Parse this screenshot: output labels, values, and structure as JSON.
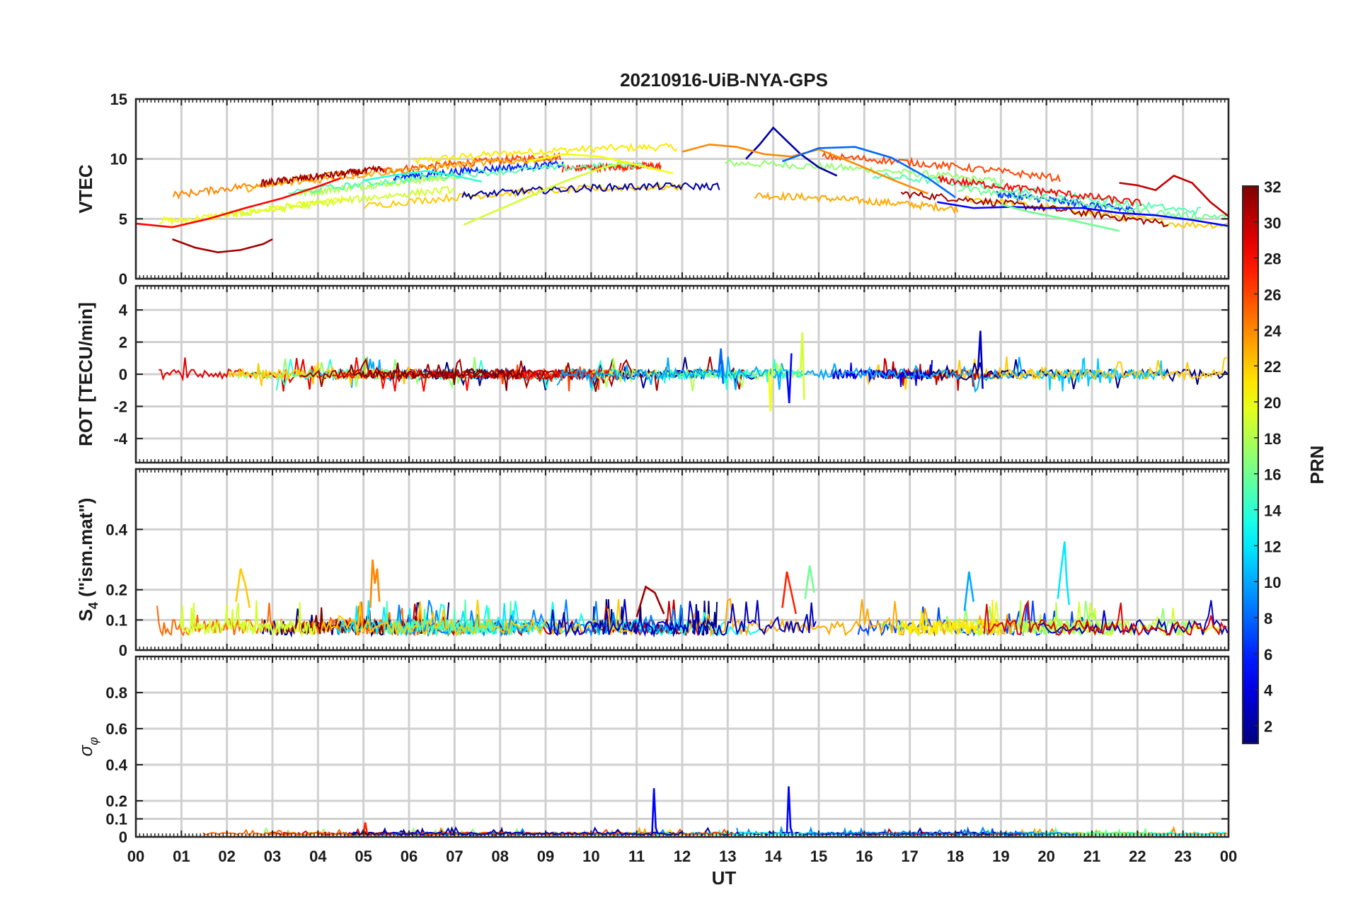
{
  "chart_data": {
    "type": "line",
    "title": "20210916-UiB-NYA-GPS",
    "xlabel": "UT",
    "x_ticks": [
      "00",
      "01",
      "02",
      "03",
      "04",
      "05",
      "06",
      "07",
      "08",
      "09",
      "10",
      "11",
      "12",
      "13",
      "14",
      "15",
      "16",
      "17",
      "18",
      "19",
      "20",
      "21",
      "22",
      "23",
      "00"
    ],
    "xlim": [
      0,
      24
    ],
    "grid": true,
    "colorbar": {
      "label": "PRN",
      "colormap": "jet",
      "clim": [
        1,
        32
      ],
      "ticks": [
        "2",
        "4",
        "6",
        "8",
        "10",
        "12",
        "14",
        "16",
        "18",
        "20",
        "22",
        "24",
        "26",
        "28",
        "30",
        "32"
      ],
      "tick_values": [
        2,
        4,
        6,
        8,
        10,
        12,
        14,
        16,
        18,
        20,
        22,
        24,
        26,
        28,
        30,
        32
      ]
    },
    "panels": [
      {
        "ylabel": "VTEC",
        "ylim": [
          0,
          15
        ],
        "y_ticks": [
          "0",
          "5",
          "10",
          "15"
        ],
        "y_tick_values": [
          0,
          5,
          10,
          15
        ],
        "series_summary": "per-PRN VTEC arcs, ~2-13 TECU, diurnal maximum near 14 UT",
        "series": [
          {
            "prn": 2,
            "x": [
              13.4,
              13.7,
              14.0,
              14.3,
              14.6,
              15.0,
              15.4
            ],
            "y": [
              10.0,
              11.2,
              12.6,
              11.5,
              10.4,
              9.3,
              8.6
            ]
          },
          {
            "prn": 31,
            "x": [
              0.8,
              1.3,
              1.8,
              2.3,
              2.8,
              3.0
            ],
            "y": [
              3.3,
              2.6,
              2.2,
              2.4,
              2.9,
              3.3
            ]
          },
          {
            "prn": 28,
            "x": [
              0.0,
              0.8,
              1.6,
              2.4,
              3.2,
              4.0,
              4.5
            ],
            "y": [
              4.6,
              4.3,
              5.0,
              5.9,
              6.7,
              7.7,
              8.4
            ]
          },
          {
            "prn": 24,
            "x": [
              12.0,
              12.6,
              13.2,
              13.8,
              14.4,
              15.0,
              15.8,
              16.6,
              17.4
            ],
            "y": [
              10.6,
              11.2,
              11.0,
              10.4,
              10.2,
              10.8,
              9.6,
              8.3,
              7.1
            ]
          },
          {
            "prn": 8,
            "x": [
              14.2,
              15.0,
              15.8,
              16.6,
              17.4,
              18.0
            ],
            "y": [
              9.8,
              10.9,
              11.0,
              10.1,
              8.4,
              6.8
            ]
          },
          {
            "prn": 19,
            "x": [
              7.2,
              7.8,
              8.6,
              9.4,
              10.2,
              10.8
            ],
            "y": [
              4.5,
              5.5,
              6.8,
              8.1,
              9.2,
              9.8
            ]
          },
          {
            "prn": 14,
            "x": [
              5.0,
              5.6,
              6.4,
              7.0,
              7.6
            ],
            "y": [
              8.2,
              8.6,
              9.0,
              8.6,
              8.1
            ]
          },
          {
            "prn": 30,
            "x": [
              21.6,
              22.0,
              22.4,
              22.8,
              23.2,
              23.6,
              24.0
            ],
            "y": [
              8.0,
              7.8,
              7.4,
              8.6,
              8.0,
              6.4,
              5.2
            ]
          },
          {
            "prn": 20,
            "x": [
              8.6,
              9.4,
              10.2,
              11.0,
              11.8
            ],
            "y": [
              9.8,
              10.4,
              10.2,
              9.5,
              8.8
            ]
          },
          {
            "prn": 5,
            "x": [
              17.6,
              18.4,
              19.2,
              20.0,
              20.8,
              21.6,
              22.4,
              23.2,
              24.0
            ],
            "y": [
              6.4,
              5.9,
              6.0,
              5.9,
              5.9,
              5.5,
              5.3,
              4.9,
              4.4
            ]
          },
          {
            "prn": 16,
            "x": [
              19.0,
              19.6,
              20.4,
              21.0,
              21.6
            ],
            "y": [
              6.2,
              5.6,
              5.0,
              4.5,
              4.0
            ]
          }
        ]
      },
      {
        "ylabel": "ROT [TECU/min]",
        "ylim": [
          -5.5,
          5.5
        ],
        "y_ticks": [
          "-4",
          "-2",
          "0",
          "2",
          "4"
        ],
        "y_tick_values": [
          -4,
          -2,
          0,
          2,
          4
        ],
        "series_summary": "rate of TEC per PRN, mostly within ±1 TECU/min, spikes to about ±2.6",
        "series": [
          {
            "prn": 19,
            "x": [
              14.6,
              14.64,
              14.68
            ],
            "y": [
              0.3,
              2.6,
              -1.6
            ]
          },
          {
            "prn": 20,
            "x": [
              13.9,
              13.94,
              13.98
            ],
            "y": [
              0.2,
              -2.3,
              0.4
            ]
          },
          {
            "prn": 3,
            "x": [
              18.5,
              18.55,
              18.6
            ],
            "y": [
              0.4,
              2.7,
              -0.9
            ]
          },
          {
            "prn": 5,
            "x": [
              14.3,
              14.35,
              14.4
            ],
            "y": [
              0.2,
              -1.8,
              1.3
            ]
          },
          {
            "prn": 8,
            "x": [
              12.8,
              12.85,
              12.9
            ],
            "y": [
              0.1,
              1.6,
              -0.6
            ]
          }
        ]
      },
      {
        "ylabel": "S_4 (\"ism.mat\")",
        "ylabel_main": "S",
        "ylabel_sub": "4",
        "ylabel_rest": " (\"ism.mat\")",
        "ylim": [
          0,
          0.6
        ],
        "y_ticks": [
          "0",
          "0.1",
          "0.2",
          "0.4"
        ],
        "y_tick_values": [
          0,
          0.1,
          0.2,
          0.4
        ],
        "series_summary": "S4 per PRN, baseline 0.04-0.1 with peaks up to ~0.36",
        "series": [
          {
            "prn": 12,
            "x": [
              20.25,
              20.3,
              20.35,
              20.4,
              20.45,
              20.5
            ],
            "y": [
              0.17,
              0.24,
              0.3,
              0.36,
              0.22,
              0.15
            ]
          },
          {
            "prn": 24,
            "x": [
              5.15,
              5.2,
              5.25,
              5.3,
              5.35
            ],
            "y": [
              0.14,
              0.3,
              0.22,
              0.27,
              0.16
            ]
          },
          {
            "prn": 22,
            "x": [
              2.2,
              2.3,
              2.4,
              2.5
            ],
            "y": [
              0.16,
              0.27,
              0.22,
              0.14
            ]
          },
          {
            "prn": 16,
            "x": [
              14.7,
              14.8,
              14.9
            ],
            "y": [
              0.17,
              0.28,
              0.19
            ]
          },
          {
            "prn": 27,
            "x": [
              14.2,
              14.3,
              14.4,
              14.5
            ],
            "y": [
              0.14,
              0.26,
              0.19,
              0.12
            ]
          },
          {
            "prn": 10,
            "x": [
              18.2,
              18.3,
              18.4
            ],
            "y": [
              0.13,
              0.26,
              0.16
            ]
          },
          {
            "prn": 31,
            "x": [
              11.0,
              11.2,
              11.4,
              11.6
            ],
            "y": [
              0.11,
              0.21,
              0.19,
              0.12
            ]
          }
        ]
      },
      {
        "ylabel": "σ_φ",
        "ylabel_main": "σ",
        "ylabel_sub": "φ",
        "ylim": [
          0,
          1.0
        ],
        "y_ticks": [
          "0",
          "0.1",
          "0.2",
          "0.4",
          "0.6",
          "0.8"
        ],
        "y_tick_values": [
          0,
          0.1,
          0.2,
          0.4,
          0.6,
          0.8
        ],
        "series_summary": "phase scintillation per PRN, near 0.01-0.03, spikes ~0.28 near 11.4 and 14.4 UT",
        "series": [
          {
            "prn": 5,
            "x": [
              11.34,
              11.38,
              11.42,
              11.46
            ],
            "y": [
              0.02,
              0.27,
              0.05,
              0.02
            ]
          },
          {
            "prn": 5,
            "x": [
              14.3,
              14.34,
              14.38,
              14.42
            ],
            "y": [
              0.02,
              0.28,
              0.05,
              0.02
            ]
          },
          {
            "prn": 27,
            "x": [
              5.0,
              5.04,
              5.08
            ],
            "y": [
              0.02,
              0.08,
              0.02
            ]
          }
        ]
      }
    ]
  }
}
